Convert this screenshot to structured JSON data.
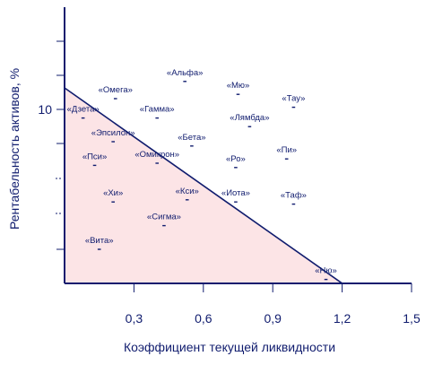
{
  "chart_data": {
    "type": "scatter",
    "xlabel": "Коэффициент текущей ликвидности",
    "ylabel": "Рентабельность активов, %",
    "xlim": [
      0,
      1.5
    ],
    "x_ticks": [
      "0,3",
      "0,6",
      "0,9",
      "1,2",
      "1,5"
    ],
    "y_ticks": [
      "10"
    ],
    "region": {
      "shape": "triangle",
      "fill": "#fce4e6",
      "boundary_from": {
        "x": 0,
        "y": 11.0
      },
      "boundary_to": {
        "x": 1.2,
        "y": 0
      }
    },
    "colors": {
      "axis": "#101c6e",
      "text": "#101c6e",
      "region": "#fce4e6"
    },
    "points": [
      {
        "label": "«Альфа»",
        "x": 0.52,
        "y": 11.3
      },
      {
        "label": "«Мю»",
        "x": 0.75,
        "y": 10.7
      },
      {
        "label": "«Омега»",
        "x": 0.22,
        "y": 10.5
      },
      {
        "label": "«Тау»",
        "x": 0.99,
        "y": 10.1
      },
      {
        "label": "«Дзета»",
        "x": 0.08,
        "y": 9.6
      },
      {
        "label": "«Гамма»",
        "x": 0.4,
        "y": 9.6
      },
      {
        "label": "«Лямбда»",
        "x": 0.8,
        "y": 9.2
      },
      {
        "label": "«Эпсилон»",
        "x": 0.21,
        "y": 8.5
      },
      {
        "label": "«Бета»",
        "x": 0.55,
        "y": 8.3
      },
      {
        "label": "«Пи»",
        "x": 0.96,
        "y": 7.7
      },
      {
        "label": "«Пси»",
        "x": 0.13,
        "y": 7.4
      },
      {
        "label": "«Омикрон»",
        "x": 0.4,
        "y": 7.5
      },
      {
        "label": "«Ро»",
        "x": 0.74,
        "y": 7.3
      },
      {
        "label": "«Хи»",
        "x": 0.21,
        "y": 5.7
      },
      {
        "label": "«Кси»",
        "x": 0.53,
        "y": 5.8
      },
      {
        "label": "«Иота»",
        "x": 0.74,
        "y": 5.7
      },
      {
        "label": "«Таф»",
        "x": 0.99,
        "y": 5.6
      },
      {
        "label": "«Сигма»",
        "x": 0.43,
        "y": 4.6
      },
      {
        "label": "«Вита»",
        "x": 0.15,
        "y": 3.5
      },
      {
        "label": "«Ню»",
        "x": 1.13,
        "y": 2.1
      }
    ]
  }
}
